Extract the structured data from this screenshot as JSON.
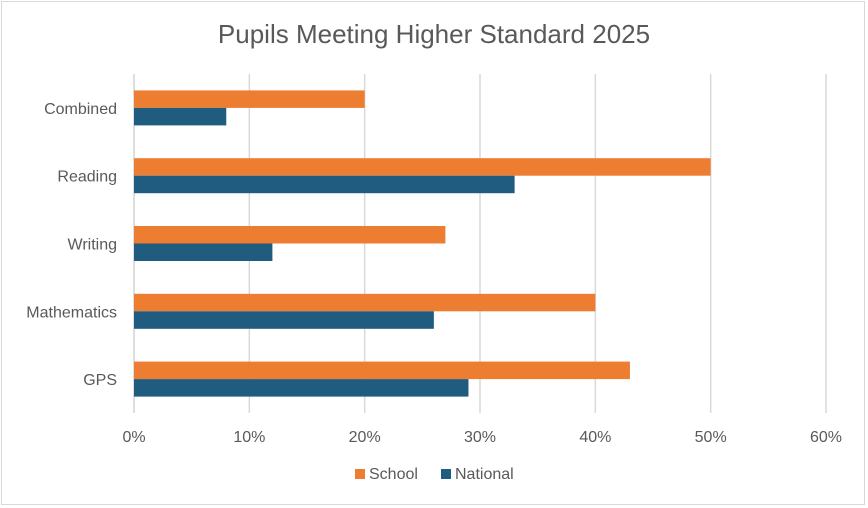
{
  "chart_data": {
    "type": "bar",
    "orientation": "horizontal",
    "title": "Pupils Meeting Higher Standard 2025",
    "categories": [
      "Combined",
      "Reading",
      "Writing",
      "Mathematics",
      "GPS"
    ],
    "series": [
      {
        "name": "School",
        "values": [
          20,
          50,
          27,
          40,
          43
        ],
        "color": "#ED7D31"
      },
      {
        "name": "National",
        "values": [
          8,
          33,
          12,
          26,
          29
        ],
        "color": "#1F5C80"
      }
    ],
    "xlim": [
      0,
      60
    ],
    "xticks": [
      0,
      10,
      20,
      30,
      40,
      50,
      60
    ],
    "xtick_labels": [
      "0%",
      "10%",
      "20%",
      "30%",
      "40%",
      "50%",
      "60%"
    ],
    "xlabel": "",
    "ylabel": "",
    "grid": true,
    "legend": "bottom"
  }
}
